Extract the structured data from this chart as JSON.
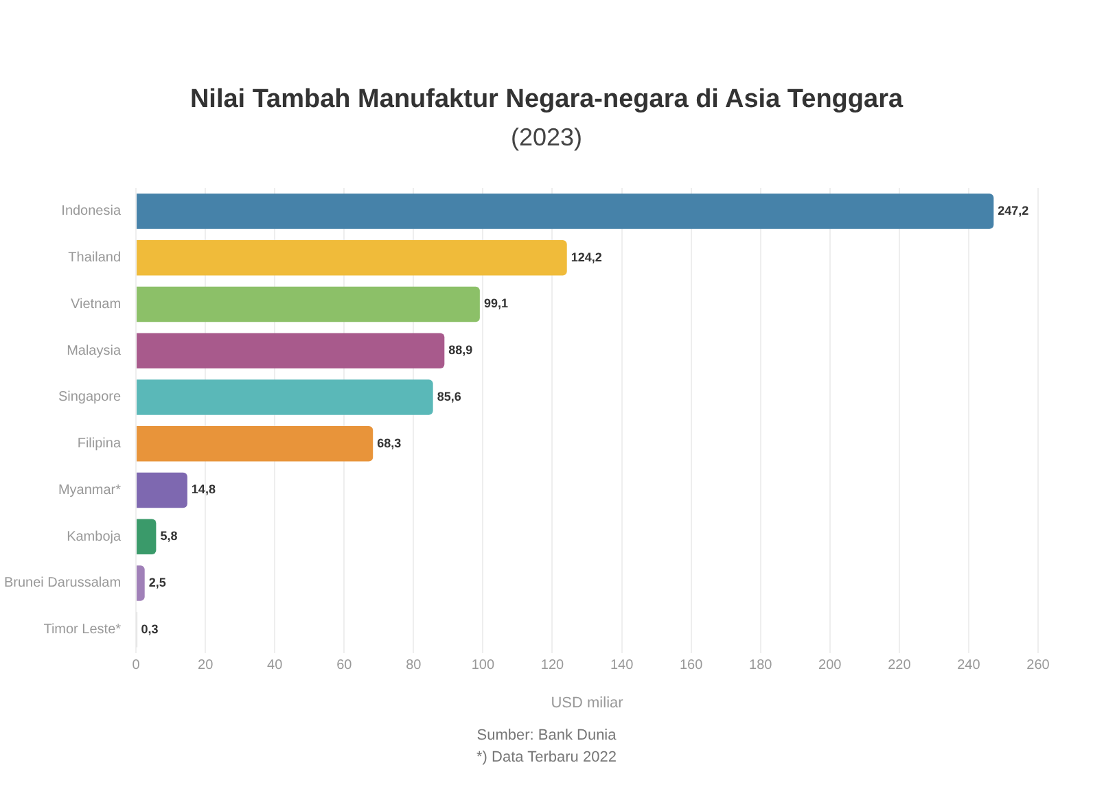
{
  "chart_data": {
    "type": "bar",
    "orientation": "horizontal",
    "title": "Nilai Tambah Manufaktur Negara-negara di Asia Tenggara",
    "subtitle": "(2023)",
    "xlabel": "USD miliar",
    "categories": [
      "Indonesia",
      "Thailand",
      "Vietnam",
      "Malaysia",
      "Singapore",
      "Filipina",
      "Myanmar*",
      "Kamboja",
      "Brunei Darussalam",
      "Timor Leste*"
    ],
    "values": [
      247.2,
      124.2,
      99.1,
      88.9,
      85.6,
      68.3,
      14.8,
      5.8,
      2.5,
      0.3
    ],
    "colors": [
      "#4682a9",
      "#f0bb3a",
      "#8cc068",
      "#a85a8c",
      "#5ab8b8",
      "#e8943a",
      "#7e68b0",
      "#3a9a6a",
      "#a080b8",
      "#b0b0b0"
    ],
    "value_labels": [
      "247,2",
      "124,2",
      "99,1",
      "88,9",
      "85,6",
      "68,3",
      "14,8",
      "5,8",
      "2,5",
      "0,3"
    ],
    "xlim": [
      0,
      260
    ],
    "xticks": [
      0,
      20,
      40,
      60,
      80,
      100,
      120,
      140,
      160,
      180,
      200,
      220,
      240,
      260
    ],
    "grid": "x",
    "annotations": [
      "Sumber: Bank Dunia",
      "*) Data Terbaru 2022"
    ]
  }
}
